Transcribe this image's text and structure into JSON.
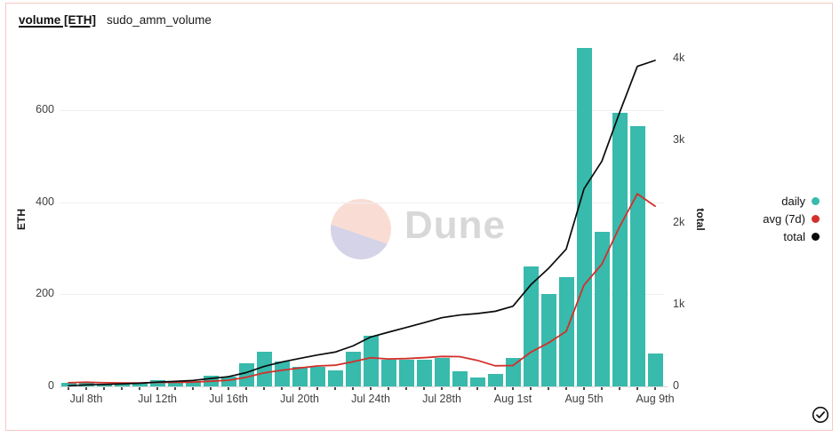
{
  "header": {
    "title": "volume [ETH]",
    "subtitle": "sudo_amm_volume"
  },
  "watermark": {
    "text": "Dune"
  },
  "chart_data": {
    "type": "bar",
    "title": "volume [ETH] sudo_amm_volume",
    "x": [
      "Jul 7",
      "Jul 8",
      "Jul 9",
      "Jul 10",
      "Jul 11",
      "Jul 12",
      "Jul 13",
      "Jul 14",
      "Jul 15",
      "Jul 16",
      "Jul 17",
      "Jul 18",
      "Jul 19",
      "Jul 20",
      "Jul 21",
      "Jul 22",
      "Jul 23",
      "Jul 24",
      "Jul 25",
      "Jul 26",
      "Jul 27",
      "Jul 28",
      "Jul 29",
      "Jul 30",
      "Jul 31",
      "Aug 1",
      "Aug 2",
      "Aug 3",
      "Aug 4",
      "Aug 5",
      "Aug 6",
      "Aug 7",
      "Aug 8",
      "Aug 9"
    ],
    "series": [
      {
        "name": "daily",
        "type": "bar",
        "axis": "left",
        "color": "#38baac",
        "values": [
          8,
          10,
          6,
          6,
          8,
          14,
          9,
          12,
          23,
          22,
          50,
          75,
          54,
          43,
          43,
          35,
          75,
          110,
          58,
          58,
          58,
          61,
          32,
          19,
          27,
          62,
          260,
          200,
          238,
          735,
          335,
          595,
          565,
          72
        ]
      },
      {
        "name": "avg (7d)",
        "type": "line",
        "axis": "left",
        "color": "#d2302c",
        "values": [
          8,
          9,
          8,
          7.5,
          7.6,
          8.7,
          8.7,
          9.3,
          11.1,
          13.4,
          19.7,
          29.3,
          35,
          39.9,
          44.3,
          46,
          53.6,
          62.1,
          59.7,
          60.3,
          62.4,
          65,
          64.6,
          56.6,
          44.7,
          45.3,
          74.1,
          94.4,
          119.7,
          220.1,
          265.3,
          346.4,
          418.3,
          391.4
        ]
      },
      {
        "name": "total",
        "type": "line",
        "axis": "right",
        "color": "#0a0a0a",
        "values": [
          8,
          18,
          24,
          30,
          38,
          52,
          61,
          73,
          96,
          118,
          168,
          243,
          297,
          340,
          383,
          418,
          493,
          603,
          661,
          719,
          777,
          838,
          870,
          889,
          916,
          978,
          1238,
          1438,
          1676,
          2411,
          2746,
          3341,
          3906,
          3978
        ]
      }
    ],
    "left_axis": {
      "title": "ETH",
      "ticks": [
        0,
        200,
        400,
        600
      ],
      "tick_labels": [
        "0",
        "200",
        "400",
        "600"
      ],
      "range": [
        0,
        735
      ]
    },
    "right_axis": {
      "title": "total",
      "ticks": [
        0,
        1000,
        2000,
        3000,
        4000
      ],
      "tick_labels": [
        "0",
        "1k",
        "2k",
        "3k",
        "4k"
      ],
      "range": [
        0,
        4000
      ]
    },
    "x_axis": {
      "tick_label_indices": [
        1,
        5,
        9,
        13,
        17,
        21,
        25,
        29,
        33
      ],
      "tick_labels": [
        "Jul 8th",
        "Jul 12th",
        "Jul 16th",
        "Jul 20th",
        "Jul 24th",
        "Jul 28th",
        "Aug 1st",
        "Aug 5th",
        "Aug 9th"
      ]
    },
    "legend": [
      {
        "label": "daily",
        "color": "#38baac"
      },
      {
        "label": "avg (7d)",
        "color": "#d2302c"
      },
      {
        "label": "total",
        "color": "#0a0a0a"
      }
    ],
    "grid": "horizontal-left-ticks",
    "legend_position": "right"
  }
}
